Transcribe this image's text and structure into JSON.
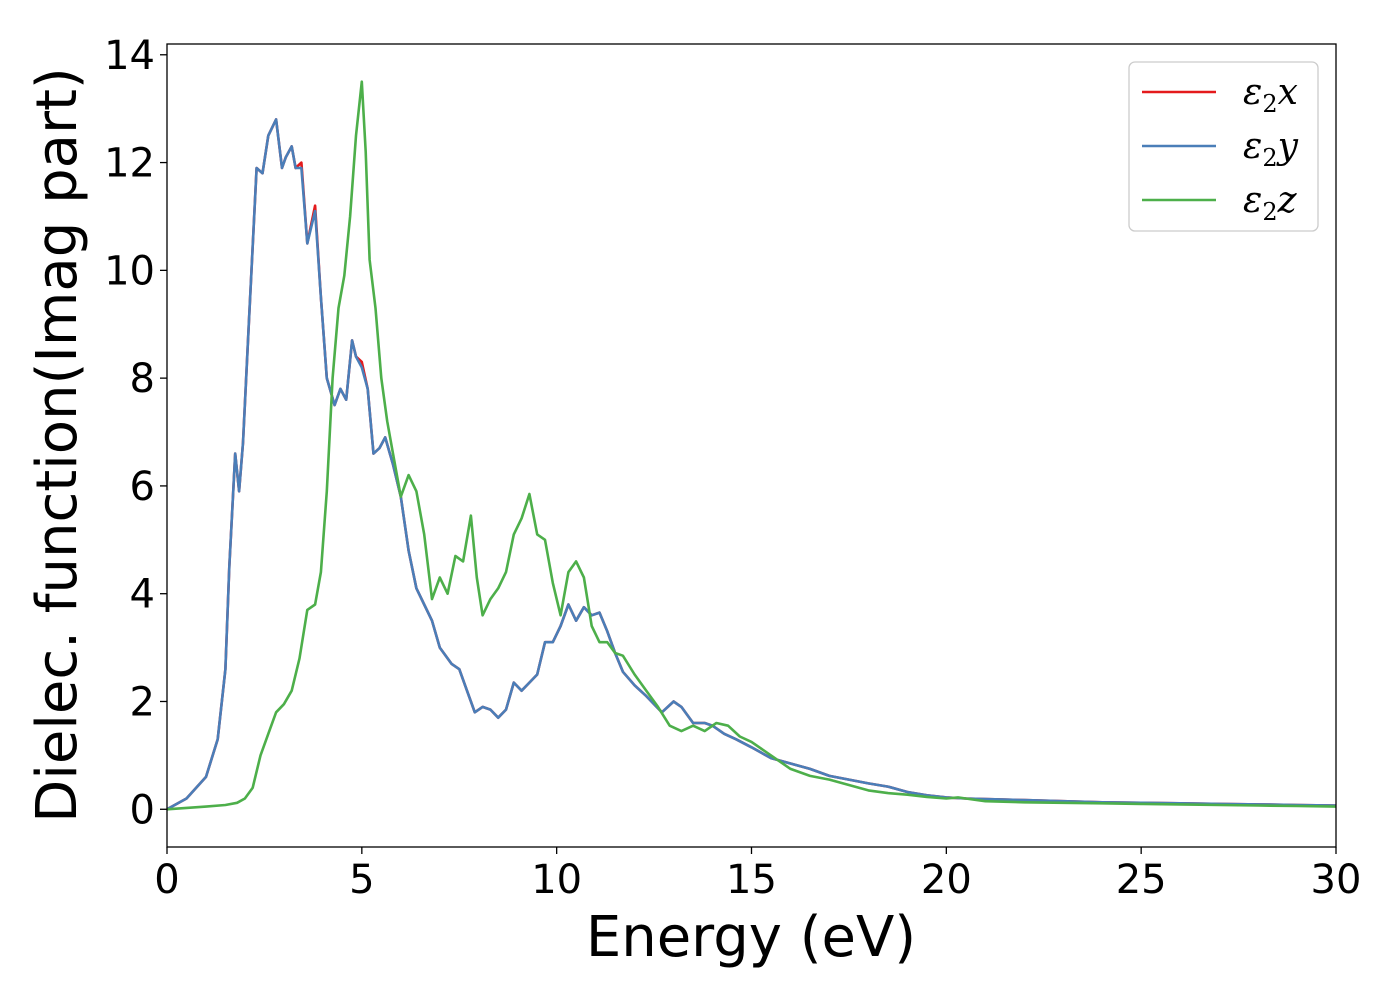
{
  "chart_data": {
    "type": "line",
    "title": "",
    "xlabel": "Energy (eV)",
    "ylabel": "Dielec. function(Imag part)",
    "xlim": [
      0,
      30
    ],
    "ylim": [
      -0.7,
      14.2
    ],
    "xticks": [
      0,
      5,
      10,
      15,
      20,
      25,
      30
    ],
    "yticks": [
      0,
      2,
      4,
      6,
      8,
      10,
      12,
      14
    ],
    "grid": false,
    "legend_position": "top-right",
    "series": [
      {
        "name": "ε2x",
        "legend_base": "ε",
        "legend_sub": "2",
        "legend_tail": "x",
        "color": "#e41a1c",
        "x": [
          0,
          0.5,
          1.0,
          1.3,
          1.5,
          1.6,
          1.75,
          1.85,
          1.95,
          2.1,
          2.3,
          2.45,
          2.6,
          2.8,
          2.95,
          3.05,
          3.2,
          3.3,
          3.45,
          3.6,
          3.8,
          3.95,
          4.1,
          4.3,
          4.45,
          4.6,
          4.75,
          4.85,
          5.0,
          5.15,
          5.3,
          5.45,
          5.6,
          5.8,
          6.0,
          6.2,
          6.4,
          6.6,
          6.8,
          7.0,
          7.3,
          7.5,
          7.7,
          7.9,
          8.1,
          8.3,
          8.5,
          8.7,
          8.9,
          9.1,
          9.3,
          9.5,
          9.7,
          9.9,
          10.1,
          10.3,
          10.5,
          10.7,
          10.9,
          11.1,
          11.3,
          11.5,
          11.7,
          12.0,
          12.3,
          12.5,
          12.7,
          13.0,
          13.2,
          13.5,
          13.8,
          14.0,
          14.3,
          14.6,
          15.0,
          15.5,
          16.0,
          16.5,
          17.0,
          17.5,
          18.0,
          18.5,
          19.0,
          19.5,
          20.0,
          20.5,
          21.0,
          21.5,
          22.0,
          23.0,
          24.0,
          25.0,
          26.0,
          27.0,
          28.0,
          29.0,
          30.0
        ],
        "values": [
          0,
          0.2,
          0.6,
          1.3,
          2.6,
          4.5,
          6.6,
          5.9,
          6.8,
          9.0,
          11.9,
          11.8,
          12.5,
          12.8,
          11.9,
          12.1,
          12.3,
          11.9,
          12.0,
          10.5,
          11.2,
          9.5,
          8.0,
          7.5,
          7.8,
          7.6,
          8.7,
          8.4,
          8.3,
          7.8,
          6.6,
          6.7,
          6.9,
          6.4,
          5.8,
          4.8,
          4.1,
          3.8,
          3.5,
          3.0,
          2.7,
          2.6,
          2.2,
          1.8,
          1.9,
          1.85,
          1.7,
          1.85,
          2.35,
          2.2,
          2.35,
          2.5,
          3.1,
          3.1,
          3.4,
          3.8,
          3.5,
          3.75,
          3.6,
          3.65,
          3.3,
          2.9,
          2.55,
          2.3,
          2.1,
          1.95,
          1.8,
          2.0,
          1.9,
          1.6,
          1.6,
          1.55,
          1.4,
          1.3,
          1.15,
          0.95,
          0.85,
          0.75,
          0.62,
          0.55,
          0.48,
          0.42,
          0.32,
          0.26,
          0.22,
          0.2,
          0.19,
          0.18,
          0.17,
          0.15,
          0.13,
          0.12,
          0.11,
          0.1,
          0.09,
          0.08,
          0.07
        ]
      },
      {
        "name": "ε2y",
        "legend_base": "ε",
        "legend_sub": "2",
        "legend_tail": "y",
        "color": "#4a7eb8",
        "x": [
          0,
          0.5,
          1.0,
          1.3,
          1.5,
          1.6,
          1.75,
          1.85,
          1.95,
          2.1,
          2.3,
          2.45,
          2.6,
          2.8,
          2.95,
          3.05,
          3.2,
          3.3,
          3.45,
          3.6,
          3.8,
          3.95,
          4.1,
          4.3,
          4.45,
          4.6,
          4.75,
          4.85,
          5.0,
          5.15,
          5.3,
          5.45,
          5.6,
          5.8,
          6.0,
          6.2,
          6.4,
          6.6,
          6.8,
          7.0,
          7.3,
          7.5,
          7.7,
          7.9,
          8.1,
          8.3,
          8.5,
          8.7,
          8.9,
          9.1,
          9.3,
          9.5,
          9.7,
          9.9,
          10.1,
          10.3,
          10.5,
          10.7,
          10.9,
          11.1,
          11.3,
          11.5,
          11.7,
          12.0,
          12.3,
          12.5,
          12.7,
          13.0,
          13.2,
          13.5,
          13.8,
          14.0,
          14.3,
          14.6,
          15.0,
          15.5,
          16.0,
          16.5,
          17.0,
          17.5,
          18.0,
          18.5,
          19.0,
          19.5,
          20.0,
          20.5,
          21.0,
          21.5,
          22.0,
          23.0,
          24.0,
          25.0,
          26.0,
          27.0,
          28.0,
          29.0,
          30.0
        ],
        "values": [
          0,
          0.2,
          0.6,
          1.3,
          2.6,
          4.5,
          6.6,
          5.9,
          6.8,
          9.0,
          11.9,
          11.8,
          12.5,
          12.8,
          11.9,
          12.1,
          12.3,
          11.9,
          11.9,
          10.5,
          11.1,
          9.5,
          8.0,
          7.5,
          7.8,
          7.6,
          8.7,
          8.4,
          8.2,
          7.8,
          6.6,
          6.7,
          6.9,
          6.4,
          5.8,
          4.8,
          4.1,
          3.8,
          3.5,
          3.0,
          2.7,
          2.6,
          2.2,
          1.8,
          1.9,
          1.85,
          1.7,
          1.85,
          2.35,
          2.2,
          2.35,
          2.5,
          3.1,
          3.1,
          3.4,
          3.8,
          3.5,
          3.75,
          3.6,
          3.65,
          3.3,
          2.9,
          2.55,
          2.3,
          2.1,
          1.95,
          1.8,
          2.0,
          1.9,
          1.6,
          1.6,
          1.55,
          1.4,
          1.3,
          1.15,
          0.95,
          0.85,
          0.75,
          0.62,
          0.55,
          0.48,
          0.42,
          0.32,
          0.26,
          0.22,
          0.2,
          0.19,
          0.18,
          0.17,
          0.15,
          0.13,
          0.12,
          0.11,
          0.1,
          0.09,
          0.08,
          0.07
        ]
      },
      {
        "name": "ε2z",
        "legend_base": "ε",
        "legend_sub": "2",
        "legend_tail": "z",
        "color": "#4daf4a",
        "x": [
          0,
          1.0,
          1.5,
          1.8,
          2.0,
          2.2,
          2.4,
          2.6,
          2.8,
          3.0,
          3.2,
          3.4,
          3.6,
          3.8,
          3.95,
          4.1,
          4.25,
          4.4,
          4.55,
          4.7,
          4.85,
          5.0,
          5.1,
          5.2,
          5.35,
          5.5,
          5.65,
          5.8,
          5.9,
          6.0,
          6.2,
          6.4,
          6.6,
          6.8,
          7.0,
          7.2,
          7.4,
          7.6,
          7.8,
          7.95,
          8.1,
          8.3,
          8.5,
          8.7,
          8.9,
          9.1,
          9.3,
          9.5,
          9.7,
          9.9,
          10.1,
          10.3,
          10.5,
          10.7,
          10.9,
          11.1,
          11.3,
          11.5,
          11.7,
          12.0,
          12.3,
          12.6,
          12.9,
          13.2,
          13.5,
          13.8,
          14.1,
          14.4,
          14.7,
          15.0,
          15.5,
          16.0,
          16.5,
          17.0,
          17.5,
          18.0,
          18.5,
          19.0,
          19.5,
          20.0,
          20.3,
          20.7,
          21.0,
          22.0,
          23.0,
          24.0,
          25.0,
          26.0,
          27.0,
          28.0,
          29.0,
          30.0
        ],
        "values": [
          0,
          0.05,
          0.08,
          0.12,
          0.2,
          0.4,
          1.0,
          1.4,
          1.8,
          1.95,
          2.2,
          2.8,
          3.7,
          3.8,
          4.4,
          5.9,
          8.0,
          9.3,
          9.9,
          11.0,
          12.5,
          13.5,
          12.2,
          10.2,
          9.3,
          8.0,
          7.2,
          6.6,
          6.2,
          5.8,
          6.2,
          5.9,
          5.1,
          3.9,
          4.3,
          4.0,
          4.7,
          4.6,
          5.45,
          4.3,
          3.6,
          3.9,
          4.1,
          4.4,
          5.1,
          5.4,
          5.85,
          5.1,
          5.0,
          4.2,
          3.6,
          4.4,
          4.6,
          4.3,
          3.4,
          3.1,
          3.1,
          2.9,
          2.85,
          2.5,
          2.2,
          1.9,
          1.55,
          1.45,
          1.55,
          1.45,
          1.6,
          1.55,
          1.35,
          1.25,
          1.0,
          0.75,
          0.62,
          0.55,
          0.45,
          0.35,
          0.3,
          0.27,
          0.23,
          0.2,
          0.22,
          0.18,
          0.15,
          0.13,
          0.12,
          0.11,
          0.1,
          0.09,
          0.08,
          0.07,
          0.06,
          0.05
        ]
      }
    ]
  }
}
